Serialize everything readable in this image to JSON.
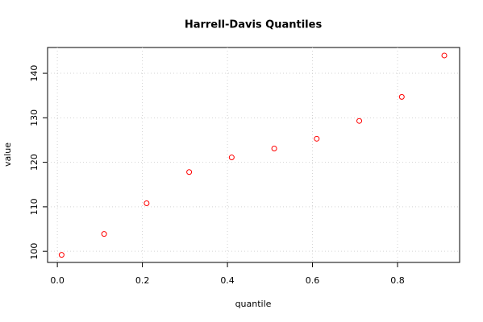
{
  "chart_data": {
    "type": "scatter",
    "title": "Harrell-Davis Quantiles",
    "x_label": "quantile",
    "y_label": "value",
    "series": [
      {
        "name": "Harrell-Davis quantiles",
        "color": "#ff0000",
        "x": [
          0.01,
          0.11,
          0.21,
          0.31,
          0.41,
          0.51,
          0.61,
          0.71,
          0.81,
          0.91
        ],
        "values": [
          99.2,
          103.9,
          110.8,
          117.8,
          121.1,
          123.1,
          125.3,
          129.3,
          134.7,
          144.0
        ]
      }
    ],
    "xlim": [
      -0.023,
      0.946
    ],
    "ylim": [
      97.5,
      145.8
    ],
    "xticks": [
      {
        "value": 0,
        "label": "0.0"
      },
      0.2,
      0.4,
      0.6,
      0.8
    ],
    "yticks": [
      100,
      110,
      120,
      130,
      140
    ],
    "grid": true
  }
}
